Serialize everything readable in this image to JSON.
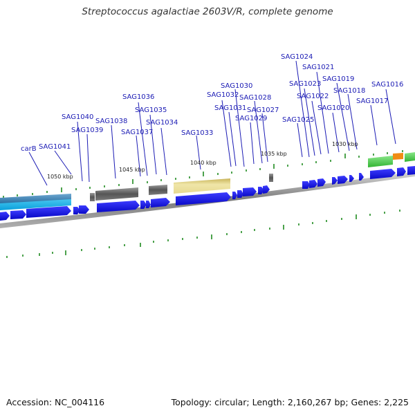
{
  "title": "Streptococcus agalactiae 2603V/R, complete genome",
  "footer": {
    "accession": "Accession: NC_004116",
    "summary": "Topology: circular; Length: 2,160,267 bp; Genes: 2,225"
  },
  "kbp_ticks": [
    {
      "label": "1050 kbp",
      "x": 1050
    },
    {
      "label": "1045 kbp",
      "x": 1045
    },
    {
      "label": "1040 kbp",
      "x": 1040
    },
    {
      "label": "1035 kbp",
      "x": 1035
    },
    {
      "label": "1030 kbp",
      "x": 1030
    }
  ],
  "gene_labels": [
    "carB",
    "SAG1041",
    "SAG1040",
    "SAG1039",
    "SAG1038",
    "SAG1037",
    "SAG1036",
    "SAG1035",
    "SAG1034",
    "SAG1033",
    "SAG1032",
    "SAG1031",
    "SAG1030",
    "SAG1029",
    "SAG1028",
    "SAG1027",
    "SAG1025",
    "SAG1024",
    "SAG1023",
    "SAG1022",
    "SAG1021",
    "SAG1020",
    "SAG1019",
    "SAG1018",
    "SAG1017",
    "SAG1016"
  ],
  "colors": {
    "gene": "#1a1ab4",
    "gene_arrow": "#0a0ae0",
    "backbone": "#8a8a8a",
    "tick": "#1f8a1f",
    "label": "#1a1ab4",
    "cyan_feature": "#19b4e6",
    "steel_feature": "#3c82b4",
    "gray_feature": "#555555",
    "khaki_feature": "#e8dc96",
    "green_feature": "#46c846",
    "orange_feature": "#f08c14"
  }
}
